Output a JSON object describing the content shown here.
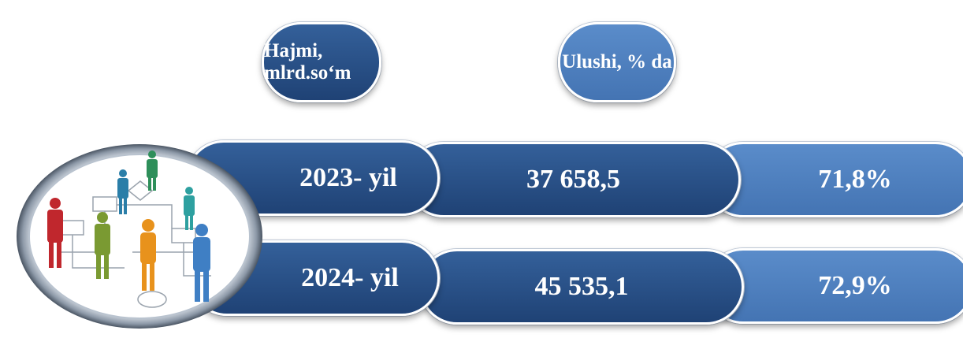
{
  "headers": {
    "volume": "Hajmi, mlrd.so‘m",
    "share": "Ulushi, % da"
  },
  "rows": [
    {
      "year": "2023- yil",
      "volume": "37 658,5",
      "share": "71,8%"
    },
    {
      "year": "2024- yil",
      "volume": "45 535,1",
      "share": "72,9%"
    }
  ]
}
